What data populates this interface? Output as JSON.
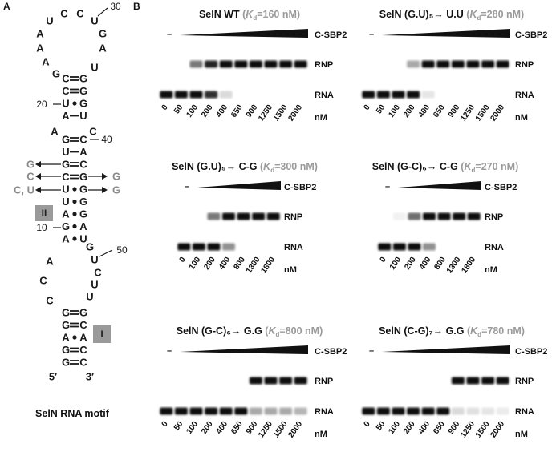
{
  "panel_a": {
    "letter": "A",
    "caption": "SelN RNA motif",
    "loop_top": [
      "U",
      "C",
      "C",
      "U"
    ],
    "loop_left": [
      "A",
      "A",
      "A",
      "G"
    ],
    "loop_right": [
      "G",
      "A",
      "U"
    ],
    "num_30": "30",
    "num_20": "20",
    "num_40": "40",
    "num_10": "10",
    "num_50": "50",
    "stem_upper": [
      {
        "l": "C",
        "r": "G",
        "bond": "="
      },
      {
        "l": "C",
        "r": "G",
        "bond": "="
      },
      {
        "l": "U",
        "r": "G",
        "bond": "•"
      },
      {
        "l": "A",
        "r": "U",
        "bond": "−"
      }
    ],
    "bulge_left": "A",
    "bulge_right": "C",
    "stem_mid": [
      {
        "l": "G",
        "r": "C",
        "bond": "="
      },
      {
        "l": "U",
        "r": "A",
        "bond": "−"
      },
      {
        "l": "G",
        "r": "C",
        "bond": "="
      },
      {
        "l": "C",
        "r": "G",
        "bond": "="
      },
      {
        "l": "U",
        "r": "G",
        "bond": "•"
      },
      {
        "l": "U",
        "r": "G",
        "bond": "•"
      },
      {
        "l": "A",
        "r": "G",
        "bond": "•"
      },
      {
        "l": "G",
        "r": "A",
        "bond": "•"
      },
      {
        "l": "A",
        "r": "U",
        "bond": "•"
      }
    ],
    "mut_left_1": "G",
    "mut_left_2": "C",
    "mut_left_3": "C, U",
    "mut_right_2": "G",
    "mut_right_3": "G",
    "box_ii": "II",
    "junction_right": [
      "G",
      "U",
      "C",
      "U",
      "U"
    ],
    "junction_left": [
      "A",
      "C",
      "C"
    ],
    "stem_lower": [
      {
        "l": "G",
        "r": "G",
        "bond": "="
      },
      {
        "l": "G",
        "r": "C",
        "bond": "="
      },
      {
        "l": "A",
        "r": "A",
        "bond": "•"
      },
      {
        "l": "G",
        "r": "C",
        "bond": "="
      },
      {
        "l": "G",
        "r": "C",
        "bond": "="
      }
    ],
    "box_i": "I",
    "end_5": "5′",
    "end_3": "3′"
  },
  "panel_b": {
    "letter": "B",
    "rnp_label": "RNP",
    "rna_label": "RNA",
    "unit": "nM",
    "minus": "–",
    "protein": "C-SBP2",
    "gels": [
      {
        "id": "wt",
        "title": "SelN WT ",
        "kd_sym": "K",
        "kd_sub": "d",
        "kd_val": "=160 nM",
        "conc": [
          "0",
          "50",
          "100",
          "200",
          "400",
          "650",
          "900",
          "1250",
          "1500",
          "2000"
        ],
        "rnp": [
          0,
          0,
          0.55,
          0.9,
          1,
          1,
          1,
          1,
          1,
          1
        ],
        "rna": [
          1,
          1,
          1,
          0.85,
          0.15,
          0,
          0,
          0,
          0,
          0
        ]
      },
      {
        "id": "gu_uu",
        "title": "SelN (G.U)₅→ U.U ",
        "kd_sym": "K",
        "kd_sub": "d",
        "kd_val": "=280 nM",
        "conc": [
          "0",
          "50",
          "100",
          "200",
          "400",
          "650",
          "900",
          "1250",
          "1500",
          "2000"
        ],
        "rnp": [
          0,
          0,
          0,
          0.35,
          1,
          1,
          1,
          1,
          1,
          1
        ],
        "rna": [
          1,
          1,
          1,
          1,
          0.1,
          0,
          0,
          0,
          0,
          0
        ]
      },
      {
        "id": "gu_cg",
        "title": "SelN (G.U)₅→ C-G ",
        "kd_sym": "K",
        "kd_sub": "d",
        "kd_val": "=300 nM",
        "conc": [
          "0",
          "100",
          "200",
          "400",
          "800",
          "1300",
          "1800"
        ],
        "rnp": [
          0,
          0,
          0.55,
          1,
          1,
          1,
          1
        ],
        "rna": [
          1,
          1,
          1,
          0.45,
          0,
          0,
          0
        ]
      },
      {
        "id": "gc_cg",
        "title": "SelN (G-C)₆→ C-G ",
        "kd_sym": "K",
        "kd_sub": "d",
        "kd_val": "=270 nM",
        "conc": [
          "0",
          "100",
          "200",
          "400",
          "800",
          "1300",
          "1800"
        ],
        "rnp": [
          0,
          0.05,
          0.6,
          1,
          1,
          1,
          1
        ],
        "rna": [
          1,
          1,
          1,
          0.45,
          0,
          0,
          0
        ]
      },
      {
        "id": "gc_gg",
        "title": "SelN (G-C)₆→ G.G ",
        "kd_sym": "K",
        "kd_sub": "d",
        "kd_val": "=800 nM",
        "conc": [
          "0",
          "50",
          "100",
          "200",
          "400",
          "650",
          "900",
          "1250",
          "1500",
          "2000"
        ],
        "rnp": [
          0,
          0,
          0,
          0,
          0,
          0,
          1,
          1,
          1,
          1
        ],
        "rna": [
          1,
          1,
          1,
          1,
          1,
          1,
          0.35,
          0.35,
          0.35,
          0.3
        ]
      },
      {
        "id": "cg_gg",
        "title": "SelN (C-G)₇→ G.G ",
        "kd_sym": "K",
        "kd_sub": "d",
        "kd_val": "=780 nM",
        "conc": [
          "0",
          "50",
          "100",
          "200",
          "400",
          "650",
          "900",
          "1250",
          "1500",
          "2000"
        ],
        "rnp": [
          0,
          0,
          0,
          0,
          0,
          0,
          1,
          1,
          1,
          1
        ],
        "rna": [
          1,
          1,
          1,
          1,
          1,
          1,
          0.15,
          0.12,
          0.1,
          0.08
        ]
      }
    ]
  }
}
